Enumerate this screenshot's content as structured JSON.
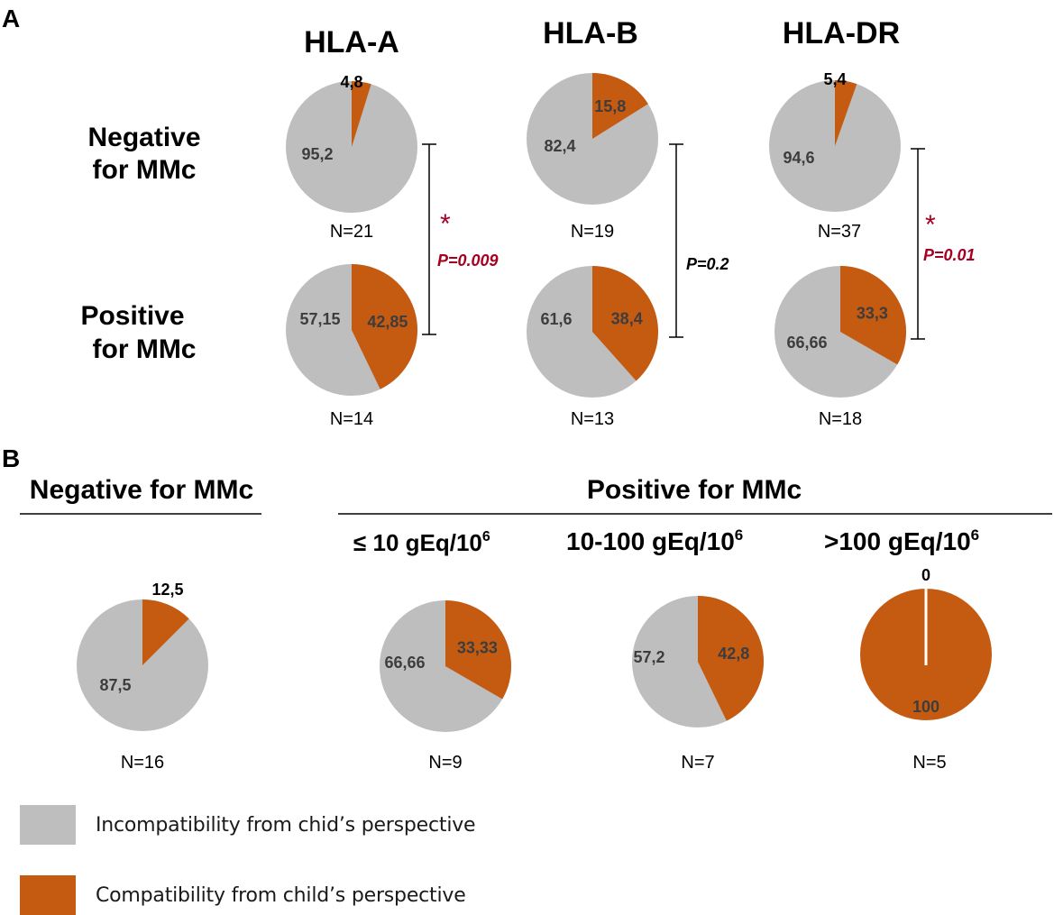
{
  "colors": {
    "incompatible": "#bebebe",
    "compatible": "#c55a11",
    "pvalue": "#a50021",
    "text": "#000000",
    "slice_label": "#3d3d3d"
  },
  "chart_data": {
    "type": "pie",
    "panel_a": {
      "letter": "A",
      "column_titles": [
        "HLA-A",
        "HLA-B",
        "HLA-DR"
      ],
      "row_labels": [
        {
          "line1": "Negative",
          "line2": "for MMc"
        },
        {
          "line1": "Positive",
          "line2": "for MMc"
        }
      ],
      "pies": [
        {
          "column": "HLA-A",
          "row": "Negative for MMc",
          "incompatible": 95.2,
          "compatible": 4.8,
          "incompatible_label": "95,2",
          "compatible_label": "4,8",
          "n_label": "N=21"
        },
        {
          "column": "HLA-B",
          "row": "Negative for MMc",
          "incompatible": 82.4,
          "compatible": 15.8,
          "incompatible_label": "82,4",
          "compatible_label": "15,8",
          "n_label": "N=19"
        },
        {
          "column": "HLA-DR",
          "row": "Negative for MMc",
          "incompatible": 94.6,
          "compatible": 5.4,
          "incompatible_label": "94,6",
          "compatible_label": "5,4",
          "n_label": "N=37"
        },
        {
          "column": "HLA-A",
          "row": "Positive for MMc",
          "incompatible": 57.15,
          "compatible": 42.85,
          "incompatible_label": "57,15",
          "compatible_label": "42,85",
          "n_label": "N=14"
        },
        {
          "column": "HLA-B",
          "row": "Positive for MMc",
          "incompatible": 61.6,
          "compatible": 38.4,
          "incompatible_label": "61,6",
          "compatible_label": "38,4",
          "n_label": "N=13"
        },
        {
          "column": "HLA-DR",
          "row": "Positive for MMc",
          "incompatible": 66.66,
          "compatible": 33.3,
          "incompatible_label": "66,66",
          "compatible_label": "33,3",
          "n_label": "N=18"
        }
      ],
      "comparisons": [
        {
          "column": "HLA-A",
          "star": "*",
          "p_value": "P=0.009",
          "significant": true
        },
        {
          "column": "HLA-B",
          "star": "",
          "p_value": "P=0.2",
          "significant": false
        },
        {
          "column": "HLA-DR",
          "star": "*",
          "p_value": "P=0.01",
          "significant": true
        }
      ]
    },
    "panel_b": {
      "letter": "B",
      "negative_header": "Negative for MMc",
      "positive_header": "Positive for MMc",
      "sub_headers": [
        "≤ 10 gEq/10",
        "10-100 gEq/10",
        ">100 gEq/10"
      ],
      "sub_header_superscript": "6",
      "pies": [
        {
          "group": "Negative for MMc",
          "incompatible": 87.5,
          "compatible": 12.5,
          "incompatible_label": "87,5",
          "compatible_label": "12,5",
          "n_label": "N=16"
        },
        {
          "group": "≤ 10 gEq/10^6",
          "incompatible": 66.66,
          "compatible": 33.33,
          "incompatible_label": "66,66",
          "compatible_label": "33,33",
          "n_label": "N=9"
        },
        {
          "group": "10-100 gEq/10^6",
          "incompatible": 57.2,
          "compatible": 42.8,
          "incompatible_label": "57,2",
          "compatible_label": "42,8",
          "n_label": "N=7"
        },
        {
          "group": ">100 gEq/10^6",
          "incompatible": 0,
          "compatible": 100,
          "incompatible_label": "0",
          "compatible_label": "100",
          "n_label": "N=5"
        }
      ]
    },
    "legend": [
      {
        "key": "incompatible",
        "label": "Incompatibility from chid’s perspective"
      },
      {
        "key": "compatible",
        "label": "Compatibility from child’s perspective"
      }
    ]
  }
}
